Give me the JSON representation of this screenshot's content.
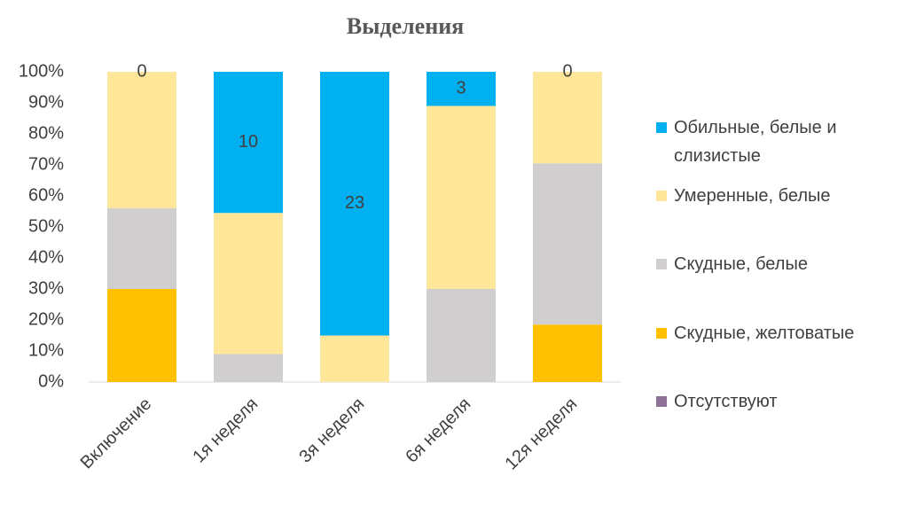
{
  "chart_data": {
    "type": "bar",
    "stacked": true,
    "title": "Выделения",
    "categories": [
      "Включение",
      "1я неделя",
      "3я неделя",
      "6я неделя",
      "12я неделя"
    ],
    "series": [
      {
        "name": "Обильные, белые и слизистые",
        "color": "#00b0f0",
        "values": [
          0,
          45.5,
          85,
          11,
          0
        ],
        "data_labels": [
          0,
          10,
          23,
          3,
          0
        ]
      },
      {
        "name": "Умеренные, белые",
        "color": "#ffe699",
        "values": [
          44,
          45.5,
          15,
          59,
          29.5
        ]
      },
      {
        "name": "Скудные, белые",
        "color": "#d0cece",
        "values": [
          26,
          9,
          0,
          30,
          52
        ]
      },
      {
        "name": "Скудные, желтоватые",
        "color": "#ffc000",
        "values": [
          30,
          0,
          0,
          0,
          18.5
        ]
      },
      {
        "name": "Отсутствуют",
        "color": "#8e7196",
        "values": [
          0,
          0,
          0,
          0,
          0
        ]
      }
    ],
    "ylim": [
      0,
      100
    ],
    "yticks": [
      {
        "value": 0,
        "label": "0%"
      },
      {
        "value": 10,
        "label": "10%"
      },
      {
        "value": 20,
        "label": "20%"
      },
      {
        "value": 30,
        "label": "30%"
      },
      {
        "value": 40,
        "label": "40%"
      },
      {
        "value": 50,
        "label": "50%"
      },
      {
        "value": 60,
        "label": "60%"
      },
      {
        "value": 70,
        "label": "70%"
      },
      {
        "value": 80,
        "label": "80%"
      },
      {
        "value": 90,
        "label": "90%"
      },
      {
        "value": 100,
        "label": "100%"
      }
    ],
    "grid": false,
    "legend": "right"
  }
}
